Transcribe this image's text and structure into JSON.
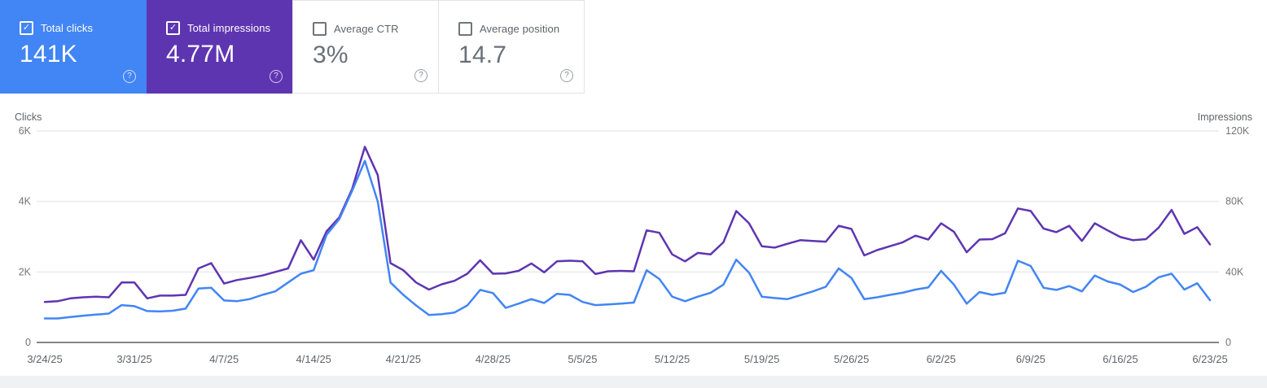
{
  "colors": {
    "clicks": "#4285f4",
    "impressions": "#5e35b1",
    "grid_light": "#e8eaed",
    "axis_line": "#80868b",
    "tick_label": "#757575",
    "axis_title": "#5f6368",
    "date_label": "#5f6368"
  },
  "icons": {
    "check": "✓",
    "help": "?"
  },
  "metric_cards": [
    {
      "label": "Total clicks",
      "value": "141K",
      "checked": true
    },
    {
      "label": "Total impressions",
      "value": "4.77M",
      "checked": true
    },
    {
      "label": "Average CTR",
      "value": "3%",
      "checked": false
    },
    {
      "label": "Average position",
      "value": "14.7",
      "checked": false
    }
  ],
  "chart_data": {
    "type": "line",
    "left_axis": {
      "title": "Clicks",
      "ticks": [
        "0",
        "2K",
        "4K",
        "6K"
      ],
      "max": 6000
    },
    "right_axis": {
      "title": "Impressions",
      "ticks": [
        "0",
        "40K",
        "80K",
        "120K"
      ],
      "max": 120000
    },
    "grid": true,
    "legend_position": "none",
    "x_tick_labels": [
      "3/24/25",
      "3/31/25",
      "4/7/25",
      "4/14/25",
      "4/21/25",
      "4/28/25",
      "5/5/25",
      "5/12/25",
      "5/19/25",
      "5/26/25",
      "6/2/25",
      "6/9/25",
      "6/16/25",
      "6/23/25"
    ],
    "x": [
      "3/24/25",
      "3/25/25",
      "3/26/25",
      "3/27/25",
      "3/28/25",
      "3/29/25",
      "3/30/25",
      "3/31/25",
      "4/1/25",
      "4/2/25",
      "4/3/25",
      "4/4/25",
      "4/5/25",
      "4/6/25",
      "4/7/25",
      "4/8/25",
      "4/9/25",
      "4/10/25",
      "4/11/25",
      "4/12/25",
      "4/13/25",
      "4/14/25",
      "4/15/25",
      "4/16/25",
      "4/17/25",
      "4/18/25",
      "4/19/25",
      "4/20/25",
      "4/21/25",
      "4/22/25",
      "4/23/25",
      "4/24/25",
      "4/25/25",
      "4/26/25",
      "4/27/25",
      "4/28/25",
      "4/29/25",
      "4/30/25",
      "5/1/25",
      "5/2/25",
      "5/3/25",
      "5/4/25",
      "5/5/25",
      "5/6/25",
      "5/7/25",
      "5/8/25",
      "5/9/25",
      "5/10/25",
      "5/11/25",
      "5/12/25",
      "5/13/25",
      "5/14/25",
      "5/15/25",
      "5/16/25",
      "5/17/25",
      "5/18/25",
      "5/19/25",
      "5/20/25",
      "5/21/25",
      "5/22/25",
      "5/23/25",
      "5/24/25",
      "5/25/25",
      "5/26/25",
      "5/27/25",
      "5/28/25",
      "5/29/25",
      "5/30/25",
      "5/31/25",
      "6/1/25",
      "6/2/25",
      "6/3/25",
      "6/4/25",
      "6/5/25",
      "6/6/25",
      "6/7/25",
      "6/8/25",
      "6/9/25",
      "6/10/25",
      "6/11/25",
      "6/12/25",
      "6/13/25",
      "6/14/25",
      "6/15/25",
      "6/16/25",
      "6/17/25",
      "6/18/25",
      "6/19/25",
      "6/20/25",
      "6/21/25",
      "6/22/25",
      "6/23/25"
    ],
    "series": [
      {
        "name": "Impressions",
        "axis": "right",
        "color": "#5e35b1",
        "values": [
          23000,
          23400,
          25000,
          25600,
          26000,
          25600,
          34000,
          34000,
          25000,
          26600,
          26600,
          27000,
          42000,
          45000,
          33400,
          35400,
          36600,
          38000,
          40000,
          42000,
          58000,
          47000,
          63000,
          71000,
          87000,
          111000,
          95000,
          45000,
          41000,
          34000,
          30000,
          33000,
          35000,
          39000,
          46600,
          39000,
          39200,
          40600,
          44800,
          39800,
          46000,
          46400,
          46000,
          38800,
          40400,
          40600,
          40400,
          63600,
          62200,
          50000,
          46000,
          50800,
          50000,
          56800,
          74600,
          67600,
          54600,
          53800,
          56000,
          58000,
          57600,
          57200,
          66200,
          64400,
          49400,
          52400,
          54600,
          56800,
          60600,
          58400,
          67600,
          62800,
          51200,
          58400,
          58600,
          62000,
          76000,
          74600,
          64600,
          62600,
          66200,
          57600,
          67600,
          63600,
          59800,
          58000,
          58600,
          65200,
          75200,
          61600,
          65400,
          55600
        ]
      },
      {
        "name": "Clicks",
        "axis": "left",
        "color": "#4285f4",
        "values": [
          680,
          680,
          720,
          760,
          790,
          820,
          1060,
          1030,
          890,
          880,
          900,
          960,
          1530,
          1550,
          1190,
          1170,
          1230,
          1350,
          1450,
          1700,
          1950,
          2050,
          3050,
          3500,
          4300,
          5150,
          4000,
          1700,
          1350,
          1050,
          780,
          800,
          850,
          1050,
          1490,
          1400,
          980,
          1100,
          1230,
          1120,
          1380,
          1350,
          1150,
          1060,
          1080,
          1100,
          1130,
          2050,
          1800,
          1300,
          1170,
          1300,
          1410,
          1640,
          2350,
          1980,
          1300,
          1260,
          1230,
          1340,
          1450,
          1580,
          2100,
          1830,
          1230,
          1280,
          1350,
          1410,
          1500,
          1560,
          2030,
          1640,
          1100,
          1430,
          1350,
          1410,
          2320,
          2170,
          1550,
          1490,
          1600,
          1450,
          1900,
          1730,
          1640,
          1430,
          1580,
          1850,
          1950,
          1500,
          1680,
          1200
        ]
      }
    ]
  }
}
